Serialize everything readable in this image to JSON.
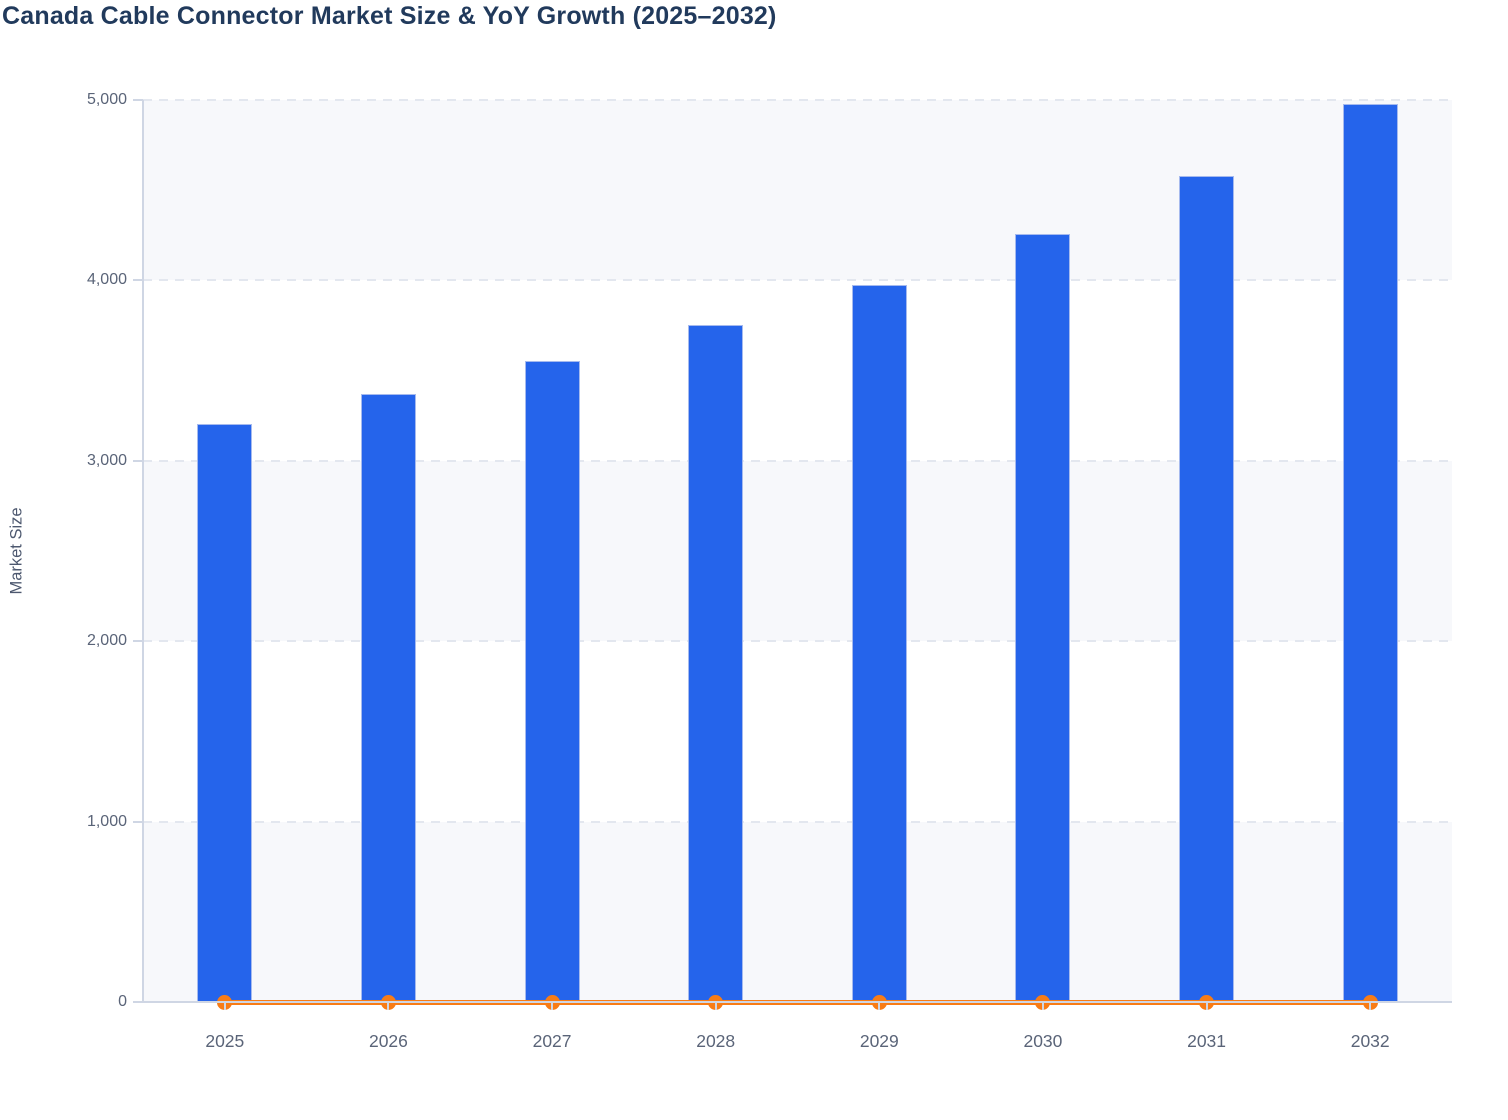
{
  "title": "Canada Cable Connector Market Size & YoY Growth (2025–2032)",
  "chart_data": {
    "type": "bar",
    "title": "Canada Cable Connector Market Size & YoY Growth (2025–2032)",
    "categories": [
      "2025",
      "2026",
      "2027",
      "2028",
      "2029",
      "2030",
      "2031",
      "2032"
    ],
    "series": [
      {
        "name": "Market Size",
        "type": "bar",
        "color": "#2564eb",
        "values": [
          3205,
          3370,
          3555,
          3755,
          3975,
          4255,
          4580,
          4980
        ]
      },
      {
        "name": "YoY Growth",
        "type": "line",
        "color": "#f87c16",
        "values": [
          0,
          0,
          0,
          0,
          0,
          0,
          0,
          0
        ],
        "note": "YoY-growth line hugs the zero baseline of the market-size axis with a round marker at every year; percent values are not readable at this scale"
      }
    ],
    "xlabel": "",
    "ylabel": "Market Size",
    "ylim": [
      0,
      5000
    ],
    "yticks": [
      0,
      1000,
      2000,
      3000,
      4000,
      5000
    ],
    "ytick_labels": [
      "0",
      "1,000",
      "2,000",
      "3,000",
      "4,000",
      "5,000"
    ],
    "grid": "dashed horizontal gridlines at each 1,000",
    "legend": "none",
    "background_bands": "alternating light horizontal bands every 1,000 units (0–1000, 2000–3000, 4000–5000 shaded)",
    "colors": {
      "bar": "#2564eb",
      "bar_border": "#a6baee",
      "line": "#f87c16",
      "band": "#f7f8fb",
      "grid": "#e3e7ef",
      "axis": "#cfd6e4",
      "tick_text": "#5a6478",
      "axis_title_text": "#4d586f",
      "title_text": "#213a5c"
    }
  }
}
